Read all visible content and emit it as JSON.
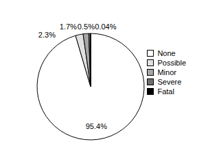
{
  "chart_data": {
    "type": "pie",
    "categories": [
      "None",
      "Possible",
      "Minor",
      "Severe",
      "Fatal"
    ],
    "values": [
      95.4,
      2.3,
      1.7,
      0.5,
      0.04
    ],
    "value_labels": [
      "95.4%",
      "2.3%",
      "1.7%",
      "0.5%",
      "0.04%"
    ],
    "colors": [
      "#ffffff",
      "#e0e0e0",
      "#a6a6a6",
      "#6e6e6e",
      "#000000"
    ],
    "legend": "right",
    "data_labels": true
  }
}
